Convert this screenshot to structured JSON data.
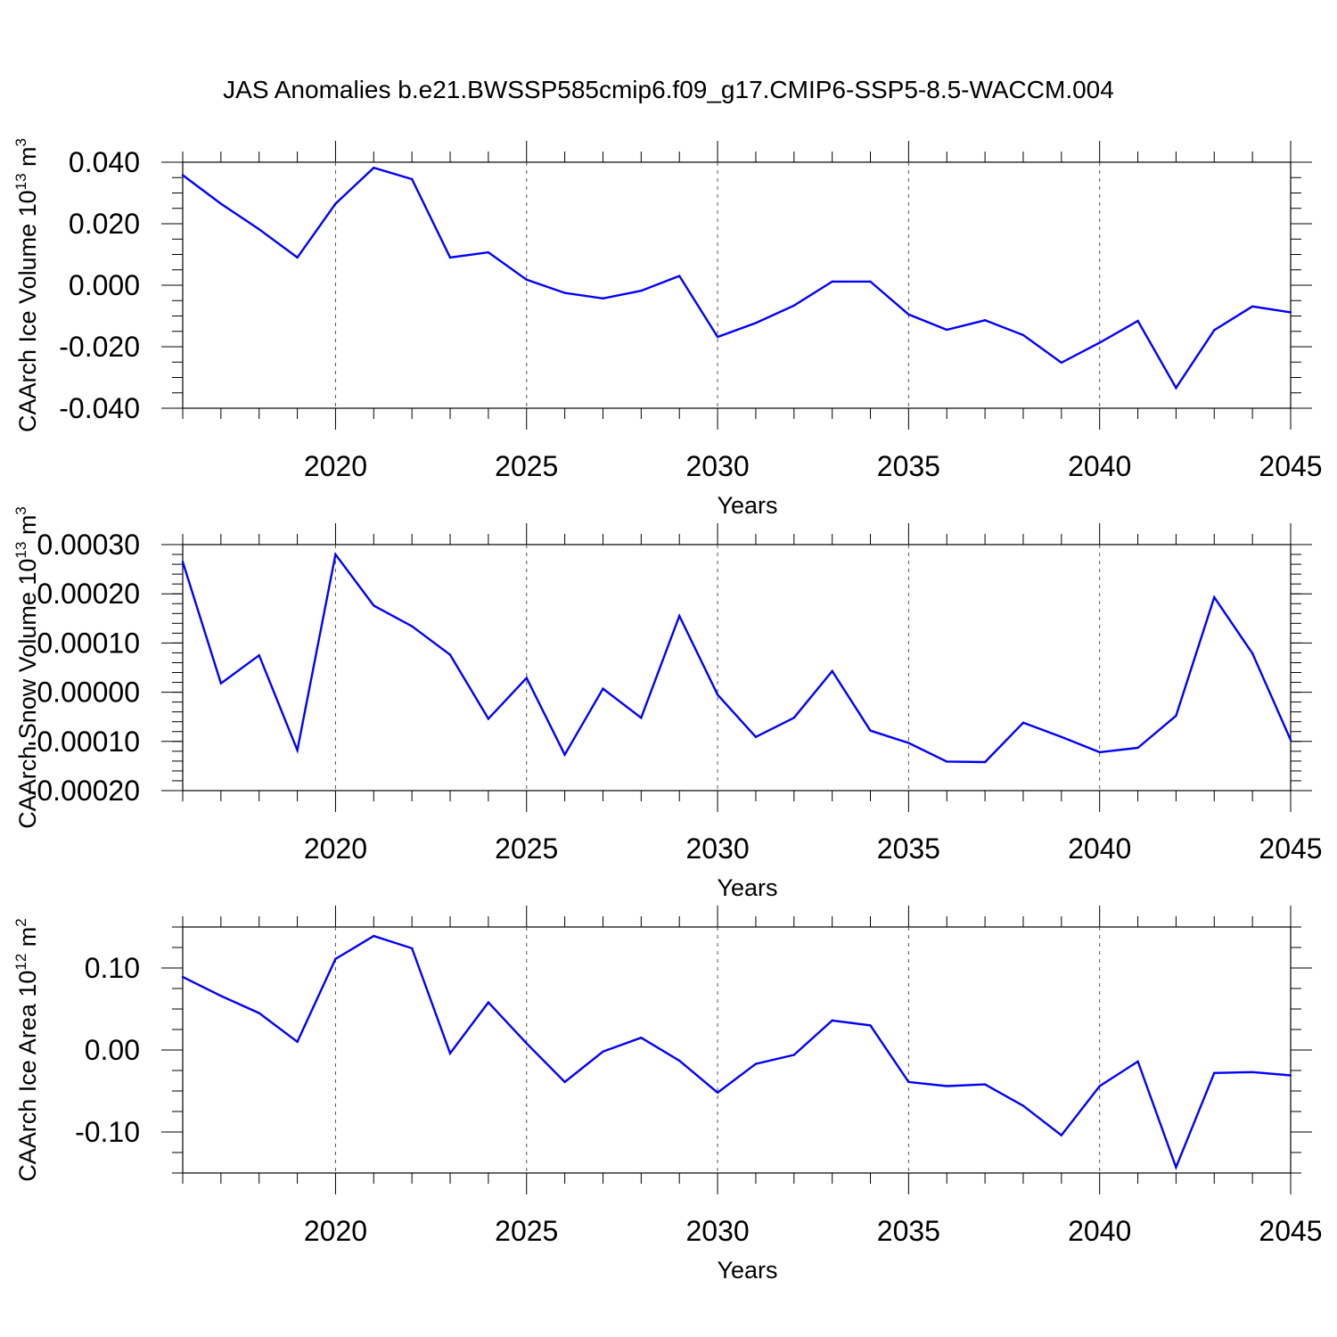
{
  "title": "JAS Anomalies b.e21.BWSSP585cmip6.f09_g17.CMIP6-SSP5-8.5-WACCM.004",
  "colors": {
    "line": "#0000ff",
    "axis": "#000000",
    "grid": "#555555"
  },
  "chart_data": [
    {
      "type": "line",
      "xlabel": "Years",
      "ylabel": "CAArch Ice Volume 10",
      "ylabel_exp": "13",
      "ylabel_unit": " m",
      "ylabel_unit_exp": "3",
      "xlim": [
        2016,
        2045
      ],
      "ylim": [
        -0.04,
        0.04
      ],
      "yticks": [
        -0.04,
        -0.02,
        0.0,
        0.02,
        0.04
      ],
      "ytick_labels": [
        "-0.040",
        "-0.020",
        "0.000",
        "0.020",
        "0.040"
      ],
      "xticks": [
        2020,
        2025,
        2030,
        2035,
        2040,
        2045
      ],
      "xtick_labels": [
        "2020",
        "2025",
        "2030",
        "2035",
        "2040",
        "2045"
      ],
      "x": [
        2016,
        2017,
        2018,
        2019,
        2020,
        2021,
        2022,
        2023,
        2024,
        2025,
        2026,
        2027,
        2028,
        2029,
        2030,
        2031,
        2032,
        2033,
        2034,
        2035,
        2036,
        2037,
        2038,
        2039,
        2040,
        2041,
        2042,
        2043,
        2044,
        2045
      ],
      "values": [
        0.0358,
        0.0265,
        0.0182,
        0.009,
        0.0265,
        0.0382,
        0.0345,
        0.009,
        0.0107,
        0.0018,
        -0.0025,
        -0.0043,
        -0.0018,
        0.003,
        -0.0168,
        -0.0123,
        -0.0066,
        0.0012,
        0.0012,
        -0.0095,
        -0.0145,
        -0.0114,
        -0.0162,
        -0.0252,
        -0.0187,
        -0.0116,
        -0.0334,
        -0.0146,
        -0.0069,
        -0.0088
      ]
    },
    {
      "type": "line",
      "xlabel": "Years",
      "ylabel": "CAArch Snow Volume 10",
      "ylabel_exp": "13",
      "ylabel_unit": " m",
      "ylabel_unit_exp": "3",
      "xlim": [
        2016,
        2045
      ],
      "ylim": [
        -0.0002,
        0.0003
      ],
      "yticks": [
        -0.0002,
        -0.0001,
        0.0,
        0.0001,
        0.0002,
        0.0003
      ],
      "ytick_labels": [
        "-0.00020",
        "-0.00010",
        "0.00000",
        "0.00010",
        "0.00020",
        "0.00030"
      ],
      "xticks": [
        2020,
        2025,
        2030,
        2035,
        2040,
        2045
      ],
      "xtick_labels": [
        "2020",
        "2025",
        "2030",
        "2035",
        "2040",
        "2045"
      ],
      "x": [
        2016,
        2017,
        2018,
        2019,
        2020,
        2021,
        2022,
        2023,
        2024,
        2025,
        2026,
        2027,
        2028,
        2029,
        2030,
        2031,
        2032,
        2033,
        2034,
        2035,
        2036,
        2037,
        2038,
        2039,
        2040,
        2041,
        2042,
        2043,
        2044,
        2045
      ],
      "values": [
        0.000265,
        1.8e-05,
        7.5e-05,
        -0.000118,
        0.00028,
        0.000176,
        0.000134,
        7.6e-05,
        -5.4e-05,
        2.9e-05,
        -0.000127,
        7e-06,
        -5.2e-05,
        0.000155,
        -5e-06,
        -9.1e-05,
        -5.2e-05,
        4.3e-05,
        -7.8e-05,
        -0.000103,
        -0.000141,
        -0.000142,
        -6.2e-05,
        -9.1e-05,
        -0.000122,
        -0.000113,
        -4.8e-05,
        0.000193,
        7.9e-05,
        -9.7e-05
      ]
    },
    {
      "type": "line",
      "xlabel": "Years",
      "ylabel": "CAArch Ice Area 10",
      "ylabel_exp": "12",
      "ylabel_unit": " m",
      "ylabel_unit_exp": "2",
      "xlim": [
        2016,
        2045
      ],
      "ylim": [
        -0.15,
        0.15
      ],
      "yticks": [
        -0.1,
        0.0,
        0.1
      ],
      "ytick_labels": [
        "-0.10",
        "0.00",
        "0.10"
      ],
      "xticks": [
        2020,
        2025,
        2030,
        2035,
        2040,
        2045
      ],
      "xtick_labels": [
        "2020",
        "2025",
        "2030",
        "2035",
        "2040",
        "2045"
      ],
      "x": [
        2016,
        2017,
        2018,
        2019,
        2020,
        2021,
        2022,
        2023,
        2024,
        2025,
        2026,
        2027,
        2028,
        2029,
        2030,
        2031,
        2032,
        2033,
        2034,
        2035,
        2036,
        2037,
        2038,
        2039,
        2040,
        2041,
        2042,
        2043,
        2044,
        2045
      ],
      "values": [
        0.089,
        0.066,
        0.045,
        0.01,
        0.111,
        0.139,
        0.124,
        -0.004,
        0.058,
        0.008,
        -0.039,
        -0.002,
        0.015,
        -0.013,
        -0.052,
        -0.017,
        -0.006,
        0.036,
        0.03,
        -0.039,
        -0.044,
        -0.042,
        -0.068,
        -0.104,
        -0.044,
        -0.014,
        -0.143,
        -0.028,
        -0.027,
        -0.031
      ]
    }
  ]
}
